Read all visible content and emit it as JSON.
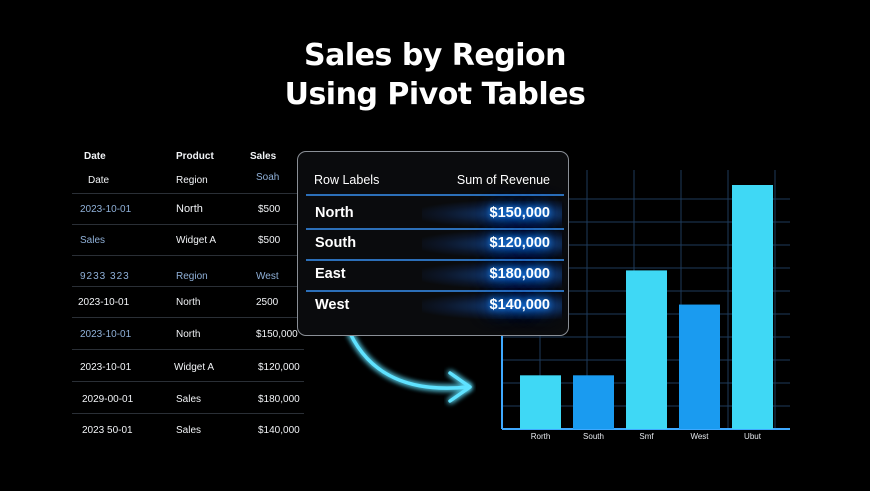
{
  "title": {
    "line1": "Sales by Region",
    "line2": "Using Pivot Tables"
  },
  "raw_table": {
    "headers": [
      "Date",
      "Product",
      "Sales"
    ],
    "rows": [
      [
        "Date",
        "Region",
        "Soah"
      ],
      [
        "2023-10-01",
        "North",
        "$500"
      ],
      [
        "Sales",
        "Widget A",
        "$500"
      ],
      [
        "9233 323",
        "Region",
        "West"
      ],
      [
        "2023-10-01",
        "North",
        "2500"
      ],
      [
        "2023-10-01",
        "North",
        "$150,000"
      ],
      [
        "2023-10-01",
        "Widget A",
        "$120,000"
      ],
      [
        "2029-00-01",
        "Sales",
        "$180,000"
      ],
      [
        "2023 50-01",
        "Sales",
        "$140,000"
      ]
    ]
  },
  "pivot": {
    "header_label": "Row Labels",
    "header_value": "Sum of Revenue",
    "rows": [
      {
        "label": "North",
        "value": "$150,000"
      },
      {
        "label": "South",
        "value": "$120,000"
      },
      {
        "label": "East",
        "value": "$180,000"
      },
      {
        "label": "West",
        "value": "$140,000"
      }
    ]
  },
  "chart_data": {
    "type": "bar",
    "categories": [
      "Rorth",
      "South",
      "Smf",
      "West",
      "Ubut"
    ],
    "values": [
      22,
      22,
      65,
      51,
      100
    ],
    "colors": [
      "#3fd8f5",
      "#1a9bf0",
      "#3fd8f5",
      "#1a9bf0",
      "#3fd8f5"
    ],
    "ylim": [
      0,
      100
    ],
    "grid": true,
    "title": "",
    "xlabel": "",
    "ylabel": ""
  },
  "colors": {
    "accent_cyan": "#3fd8f5",
    "accent_blue": "#1a9bf0",
    "glow": "#1e90ff",
    "grid": "#1e3a5a"
  }
}
